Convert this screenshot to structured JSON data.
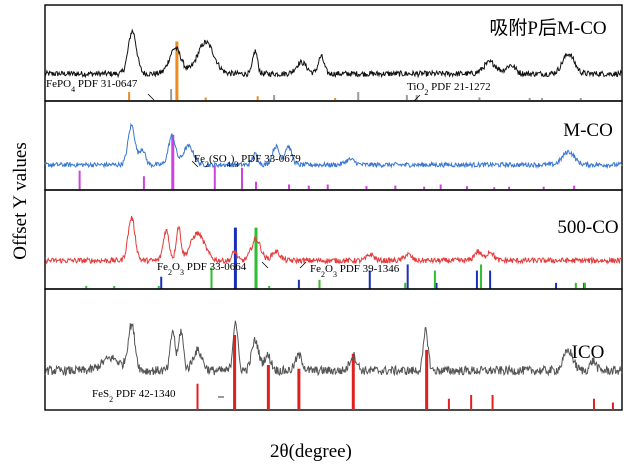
{
  "chart_data": {
    "type": "line",
    "xlabel": "2θ(degree)",
    "ylabel": "Offset Y values",
    "xlim": [
      10,
      80
    ],
    "x_ticks_shown": false,
    "y_ticks_shown": false,
    "panels": [
      {
        "name": "吸附P后M-CO",
        "color": "#111111",
        "baseline": 0.35,
        "noise": 0.1,
        "peaks": [
          [
            20.6,
            1.5,
            0.7
          ],
          [
            25.8,
            0.9,
            1.0
          ],
          [
            29.5,
            1.1,
            1.4
          ],
          [
            35.5,
            0.8,
            0.4
          ],
          [
            41.1,
            0.4,
            0.9
          ],
          [
            43.5,
            0.6,
            0.5
          ],
          [
            64.0,
            0.4,
            1.1
          ],
          [
            66.5,
            0.3,
            0.8
          ],
          [
            73.5,
            0.7,
            1.0
          ]
        ],
        "references": [
          {
            "label_main": "FePO",
            "label_sub": "4",
            "label_rest": " PDF 31-0647",
            "color": "#f08c1e",
            "lines": [
              [
                20.2,
                0.15
              ],
              [
                26.0,
                1.0
              ],
              [
                29.5,
                0.06
              ],
              [
                35.8,
                0.08
              ],
              [
                45.2,
                0.05
              ]
            ]
          },
          {
            "label_main": "TiO",
            "label_sub": "2",
            "label_rest": " PDF 21-1272",
            "color": "#9a9a9a",
            "lines": [
              [
                25.3,
                0.2
              ],
              [
                37.8,
                0.1
              ],
              [
                48.0,
                0.15
              ],
              [
                53.9,
                0.1
              ],
              [
                55.1,
                0.1
              ],
              [
                62.7,
                0.06
              ],
              [
                68.8,
                0.05
              ],
              [
                70.3,
                0.05
              ],
              [
                75.0,
                0.05
              ]
            ]
          }
        ]
      },
      {
        "name": "M-CO",
        "color": "#3a78d0",
        "baseline": 0.35,
        "noise": 0.09,
        "peaks": [
          [
            20.5,
            1.5,
            0.6
          ],
          [
            21.8,
            0.6,
            0.5
          ],
          [
            25.4,
            1.1,
            0.6
          ],
          [
            27.4,
            0.7,
            0.9
          ],
          [
            35.5,
            0.4,
            0.5
          ],
          [
            38.0,
            0.7,
            0.6
          ],
          [
            39.5,
            0.7,
            0.6
          ],
          [
            47.0,
            0.2,
            0.8
          ],
          [
            73.5,
            0.5,
            1.0
          ]
        ],
        "references": [
          {
            "label_main": "Fe",
            "label_sub": "2",
            "label_rest": "(SO",
            "label_sub2": "4",
            "label_rest2": ")",
            "label_sub3": "3",
            "label_rest3": " PDF 33-0679",
            "color": "#cc44dd",
            "lines": [
              [
                14.2,
                0.35
              ],
              [
                22.0,
                0.25
              ],
              [
                25.5,
                1.0
              ],
              [
                30.6,
                0.45
              ],
              [
                33.9,
                0.4
              ],
              [
                35.6,
                0.15
              ],
              [
                39.6,
                0.1
              ],
              [
                42.0,
                0.08
              ],
              [
                44.3,
                0.1
              ],
              [
                49.0,
                0.07
              ],
              [
                52.5,
                0.08
              ],
              [
                56.0,
                0.06
              ],
              [
                58.0,
                0.1
              ],
              [
                61.2,
                0.07
              ],
              [
                64.5,
                0.05
              ],
              [
                66.3,
                0.06
              ],
              [
                70.5,
                0.06
              ],
              [
                74.2,
                0.08
              ]
            ]
          }
        ]
      },
      {
        "name": "500-CO",
        "color": "#e33b3b",
        "baseline": 0.35,
        "noise": 0.09,
        "peaks": [
          [
            20.5,
            1.4,
            0.6
          ],
          [
            24.7,
            1.0,
            0.5
          ],
          [
            26.2,
            1.1,
            0.4
          ],
          [
            28.5,
            0.9,
            1.2
          ],
          [
            33.0,
            0.3,
            0.4
          ],
          [
            35.6,
            0.7,
            0.8
          ],
          [
            38.0,
            0.3,
            0.7
          ],
          [
            49.5,
            0.2,
            0.6
          ],
          [
            54.0,
            0.2,
            0.6
          ],
          [
            62.5,
            0.3,
            0.6
          ],
          [
            64.0,
            0.3,
            0.6
          ]
        ],
        "references": [
          {
            "label_main": "Fe",
            "label_sub": "2",
            "label_rest": "O",
            "label_sub2": "3",
            "label_rest2": " PDF 33-0664",
            "color": "#1a2fb8",
            "lines": [
              [
                24.1,
                0.2
              ],
              [
                33.1,
                1.0
              ],
              [
                35.6,
                0.75
              ],
              [
                40.8,
                0.15
              ],
              [
                49.4,
                0.3
              ],
              [
                54.0,
                0.4
              ],
              [
                57.5,
                0.1
              ],
              [
                62.4,
                0.3
              ],
              [
                64.0,
                0.3
              ],
              [
                72.0,
                0.1
              ],
              [
                75.4,
                0.1
              ]
            ]
          },
          {
            "label_main": "Fe",
            "label_sub": "2",
            "label_rest": "O",
            "label_sub2": "3",
            "label_rest2": " PDF 39-1346",
            "color": "#2ebe2e",
            "lines": [
              [
                15.0,
                0.05
              ],
              [
                18.4,
                0.05
              ],
              [
                23.8,
                0.05
              ],
              [
                30.2,
                0.35
              ],
              [
                35.6,
                1.0
              ],
              [
                37.2,
                0.05
              ],
              [
                43.3,
                0.15
              ],
              [
                53.7,
                0.1
              ],
              [
                57.3,
                0.3
              ],
              [
                62.9,
                0.4
              ],
              [
                74.4,
                0.1
              ],
              [
                75.5,
                0.1
              ]
            ]
          }
        ]
      },
      {
        "name": "ICO",
        "color": "#555555",
        "baseline": 0.35,
        "noise": 0.09,
        "peaks": [
          [
            18.0,
            0.25,
            1.5
          ],
          [
            20.5,
            0.9,
            0.6
          ],
          [
            25.5,
            0.8,
            0.4
          ],
          [
            26.5,
            0.8,
            0.4
          ],
          [
            28.5,
            0.4,
            0.8
          ],
          [
            33.1,
            1.0,
            0.4
          ],
          [
            35.5,
            0.6,
            0.6
          ],
          [
            37.0,
            0.3,
            0.6
          ],
          [
            40.8,
            0.3,
            0.6
          ],
          [
            47.4,
            0.3,
            0.6
          ],
          [
            56.2,
            0.8,
            0.4
          ],
          [
            73.5,
            0.4,
            0.8
          ],
          [
            76.5,
            0.2,
            0.5
          ]
        ],
        "references": [
          {
            "label_main": "FeS",
            "label_sub": "2",
            "label_rest": " PDF 42-1340",
            "color": "#e01f1f",
            "lines": [
              [
                28.5,
                0.35
              ],
              [
                33.0,
                1.0
              ],
              [
                37.1,
                0.6
              ],
              [
                40.8,
                0.55
              ],
              [
                47.4,
                0.75
              ],
              [
                56.3,
                0.8
              ],
              [
                59.0,
                0.15
              ],
              [
                61.7,
                0.2
              ],
              [
                64.3,
                0.2
              ],
              [
                76.6,
                0.15
              ],
              [
                78.9,
                0.1
              ]
            ]
          }
        ]
      }
    ]
  }
}
